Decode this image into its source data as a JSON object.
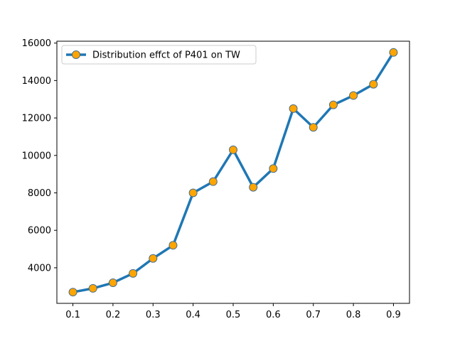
{
  "chart_data": {
    "type": "line",
    "title": "",
    "xlabel": "",
    "ylabel": "",
    "x": [
      0.1,
      0.15,
      0.2,
      0.25,
      0.3,
      0.35,
      0.4,
      0.45,
      0.5,
      0.55,
      0.6,
      0.65,
      0.7,
      0.75,
      0.8,
      0.85,
      0.9
    ],
    "series": [
      {
        "name": "Distribution effct of P401 on TW",
        "values": [
          2700,
          2900,
          3200,
          3700,
          4500,
          5200,
          8000,
          8600,
          10300,
          8300,
          9300,
          12500,
          11500,
          12700,
          13200,
          13800,
          15500
        ],
        "line_color": "#1f77b4",
        "marker_face_color": "#ffa500",
        "marker_edge_color": "#4a6e8a"
      }
    ],
    "xlim": [
      0.06,
      0.94
    ],
    "ylim": [
      2100,
      16100
    ],
    "x_ticks": [
      0.1,
      0.2,
      0.3,
      0.4,
      0.5,
      0.6,
      0.7,
      0.8,
      0.9
    ],
    "x_tick_labels": [
      "0.1",
      "0.2",
      "0.3",
      "0.4",
      "0.5",
      "0.6",
      "0.7",
      "0.8",
      "0.9"
    ],
    "y_ticks": [
      4000,
      6000,
      8000,
      10000,
      12000,
      14000,
      16000
    ],
    "y_tick_labels": [
      "4000",
      "6000",
      "8000",
      "10000",
      "12000",
      "14000",
      "16000"
    ],
    "legend_position": "top-left",
    "grid": false
  }
}
